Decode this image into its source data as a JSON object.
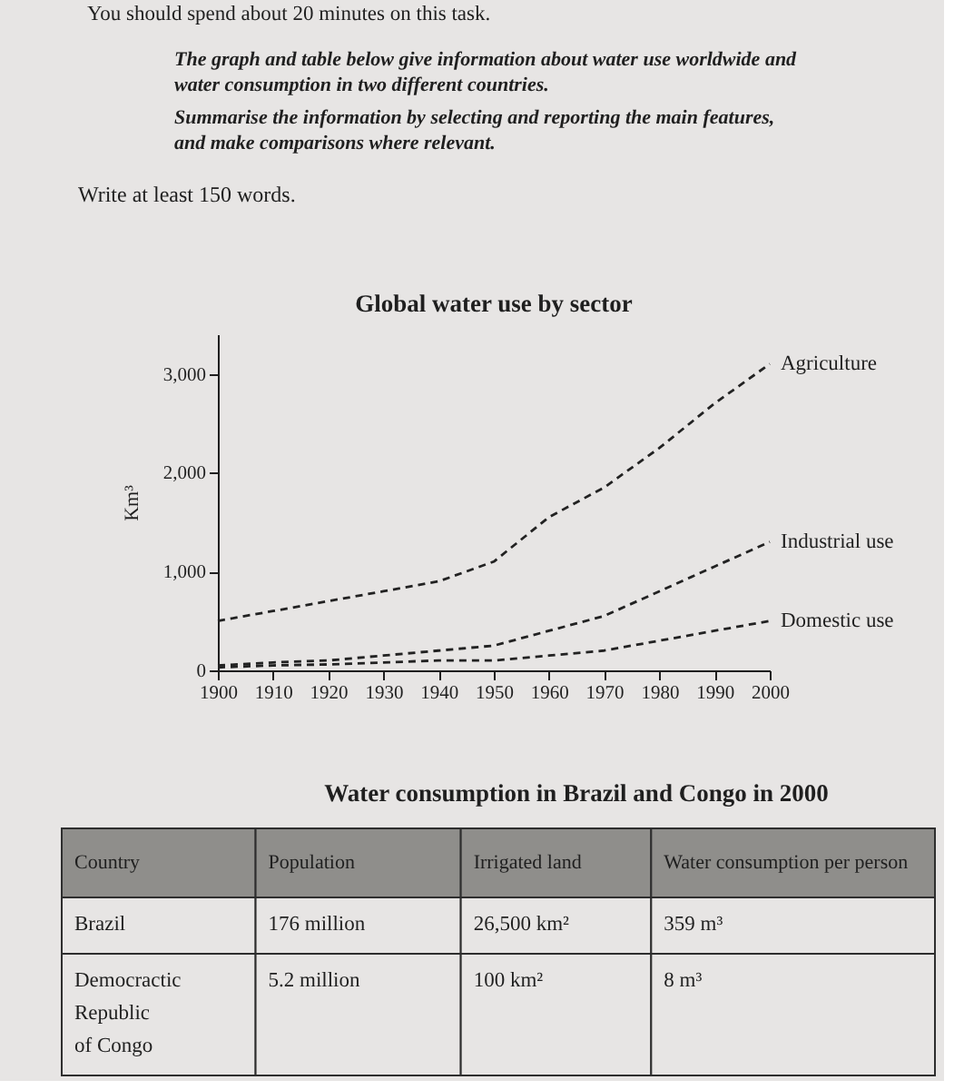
{
  "chart_data": [
    {
      "type": "line",
      "title": "Global water use by sector",
      "ylabel": "Km³",
      "annotations": [
        "You should spend about 20 minutes on this task.",
        "The graph and table below give information about water use worldwide and water consumption in two different countries.",
        "Summarise the information by selecting and reporting the main features, and make comparisons where relevant.",
        "Write at least 150 words."
      ],
      "x": [
        1900,
        1910,
        1920,
        1930,
        1940,
        1950,
        1960,
        1970,
        1980,
        1990,
        2000
      ],
      "series": [
        {
          "name": "Agriculture",
          "color": "#222222",
          "values": [
            500,
            600,
            700,
            800,
            900,
            1100,
            1550,
            1850,
            2250,
            2700,
            3100
          ]
        },
        {
          "name": "Industrial use",
          "color": "#222222",
          "values": [
            50,
            80,
            100,
            150,
            200,
            250,
            400,
            550,
            800,
            1050,
            1300
          ]
        },
        {
          "name": "Domestic use",
          "color": "#222222",
          "values": [
            30,
            50,
            60,
            80,
            100,
            100,
            150,
            200,
            300,
            400,
            500
          ]
        }
      ],
      "xlim": [
        1900,
        2000
      ],
      "xticks": [
        1900,
        1910,
        1920,
        1930,
        1940,
        1950,
        1960,
        1970,
        1980,
        1990,
        2000
      ],
      "ylim": [
        0,
        3400
      ],
      "yticks": [
        0,
        {
          "value": 1000,
          "label": "1,000"
        },
        {
          "value": 2000,
          "label": "2,000"
        },
        {
          "value": 3000,
          "label": "3,000"
        }
      ],
      "grid": false,
      "legend": false,
      "marker": "none",
      "line_style": "dashed"
    },
    {
      "type": "other",
      "title": "Water consumption in Brazil and Congo in 2000",
      "categories": [
        "Country",
        "Population",
        "Irrigated land",
        "Water consumption per person"
      ],
      "cell_labels": [
        [
          "Brazil",
          "176 million",
          "26,500 km²",
          "359 m³"
        ],
        [
          "Democractic Republic of Congo",
          "5.2 million",
          "100 km²",
          "8 m³"
        ]
      ]
    }
  ]
}
